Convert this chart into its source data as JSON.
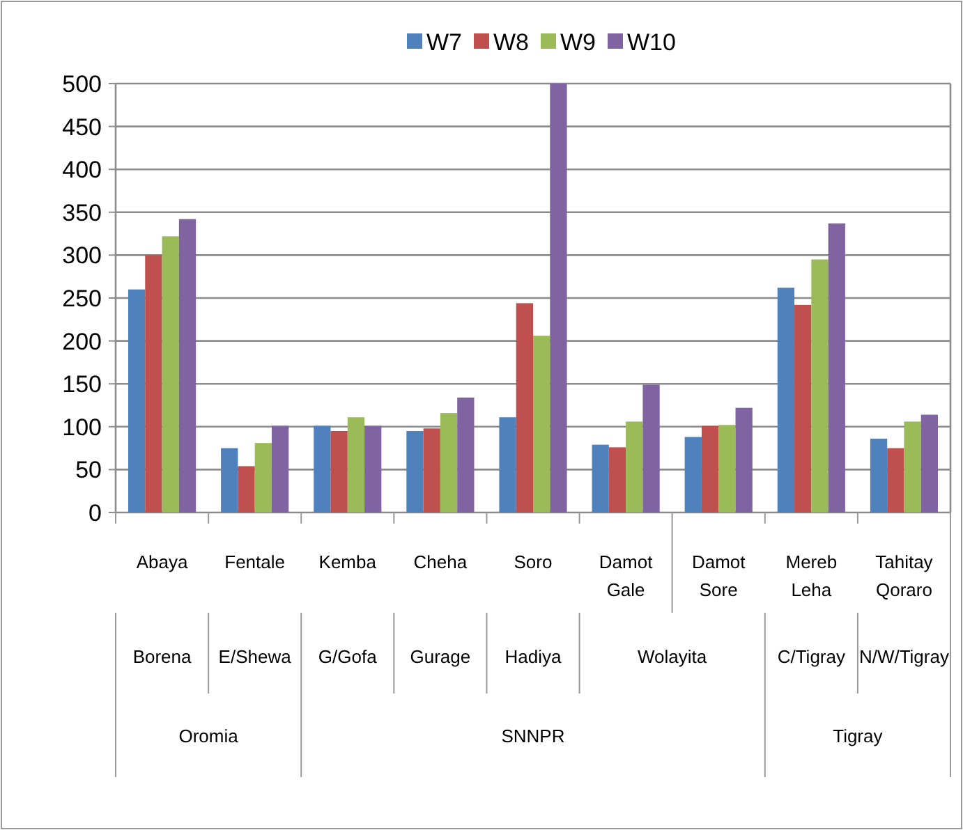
{
  "chart_data": {
    "type": "bar",
    "categories": [
      "Abaya",
      "Fentale",
      "Kemba",
      "Cheha",
      "Soro",
      "Damot Gale",
      "Damot Sore",
      "Mereb Leha",
      "Tahitay Qoraro"
    ],
    "series": [
      {
        "name": "W7",
        "color": "#4f81bd",
        "values": [
          260,
          75,
          101,
          95,
          111,
          79,
          88,
          262,
          86
        ]
      },
      {
        "name": "W8",
        "color": "#c0504d",
        "values": [
          300,
          54,
          95,
          98,
          244,
          76,
          101,
          242,
          75
        ]
      },
      {
        "name": "W9",
        "color": "#9bbb59",
        "values": [
          322,
          81,
          111,
          116,
          206,
          106,
          102,
          295,
          106
        ]
      },
      {
        "name": "W10",
        "color": "#8064a2",
        "values": [
          342,
          101,
          101,
          134,
          500,
          149,
          122,
          337,
          114
        ]
      }
    ],
    "ylim": [
      0,
      500
    ],
    "yticks": [
      0,
      50,
      100,
      150,
      200,
      250,
      300,
      350,
      400,
      450,
      500
    ],
    "grid": "y",
    "legend": "top",
    "annotations": [
      "Borena",
      "E/Shewa",
      "G/Gofa",
      "Gurage",
      "Hadiya",
      "Wolayita",
      "C/Tigray",
      "N/W/Tigray",
      "Oromia",
      "SNNPR",
      "Tigray"
    ]
  }
}
